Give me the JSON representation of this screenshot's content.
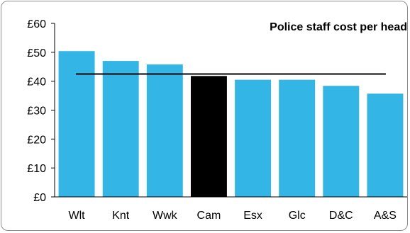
{
  "chart_data": {
    "type": "bar",
    "title": "Police staff cost per head",
    "categories": [
      "Wlt",
      "Knt",
      "Wwk",
      "Cam",
      "Esx",
      "Glc",
      "D&C",
      "A&S"
    ],
    "values": [
      50.4,
      47.0,
      45.8,
      41.8,
      40.5,
      40.5,
      38.4,
      35.7
    ],
    "highlight_category": "Cam",
    "reference_line": 42.5,
    "ylim": [
      0,
      60
    ],
    "yticks": [
      0,
      10,
      20,
      30,
      40,
      50,
      60
    ],
    "ytick_labels": [
      "£0",
      "£10",
      "£20",
      "£30",
      "£40",
      "£50",
      "£60"
    ],
    "grid": false,
    "colors": {
      "bar": "#33b5e5",
      "highlight": "#000000",
      "reference_line": "#000000",
      "axis": "#000000"
    }
  }
}
